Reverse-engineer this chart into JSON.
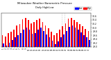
{
  "title": "Milwaukee Weather Barometric Pressure",
  "subtitle": "Daily High/Low",
  "legend_high": "High",
  "legend_low": "Low",
  "color_high": "#ff0000",
  "color_low": "#0000ff",
  "background_color": "#ffffff",
  "ylim": [
    29.0,
    30.75
  ],
  "yticks": [
    29.0,
    29.2,
    29.4,
    29.6,
    29.8,
    30.0,
    30.2,
    30.4,
    30.6
  ],
  "dates": [
    "1",
    "2",
    "3",
    "4",
    "5",
    "6",
    "7",
    "8",
    "9",
    "10",
    "11",
    "12",
    "13",
    "14",
    "15",
    "16",
    "17",
    "18",
    "19",
    "20",
    "21",
    "22",
    "23",
    "24",
    "25",
    "26",
    "27",
    "28",
    "29",
    "30",
    "31"
  ],
  "highs": [
    29.62,
    29.55,
    29.7,
    29.78,
    29.9,
    30.1,
    30.18,
    30.42,
    30.5,
    30.38,
    30.22,
    30.28,
    30.38,
    30.45,
    30.28,
    30.12,
    29.98,
    29.8,
    29.62,
    29.72,
    29.88,
    30.08,
    30.22,
    30.45,
    30.52,
    30.38,
    30.3,
    30.18,
    30.08,
    29.92,
    29.82
  ],
  "lows": [
    29.18,
    29.08,
    29.22,
    29.35,
    29.48,
    29.62,
    29.72,
    29.88,
    30.0,
    29.88,
    29.68,
    29.72,
    29.88,
    30.0,
    29.82,
    29.65,
    29.48,
    29.32,
    29.15,
    29.28,
    29.48,
    29.65,
    29.82,
    30.02,
    30.12,
    30.0,
    29.9,
    29.75,
    29.62,
    29.48,
    29.35
  ]
}
